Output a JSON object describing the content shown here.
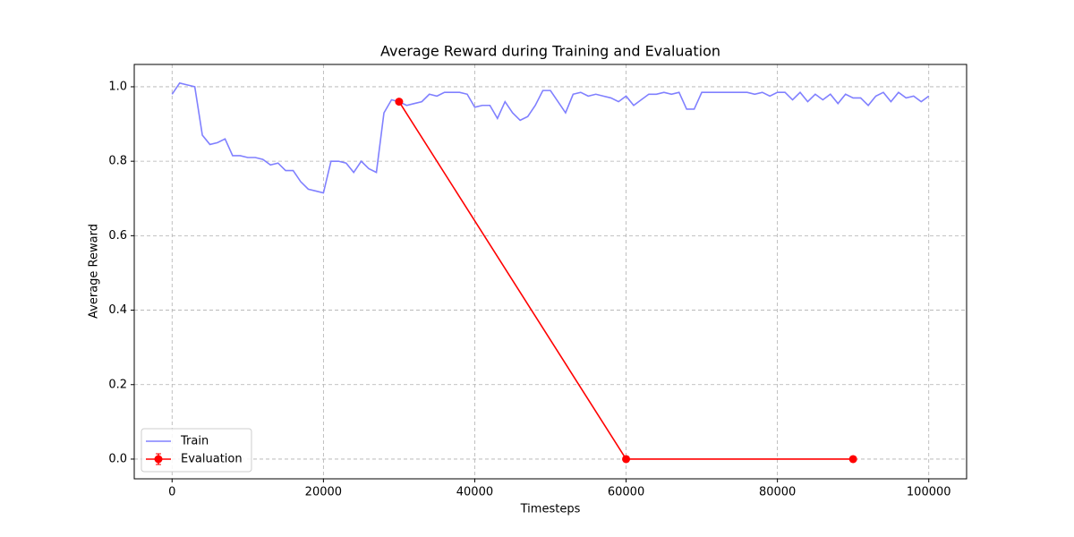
{
  "chart_data": {
    "type": "line",
    "title": "Average Reward during Training and Evaluation",
    "x_label": "Timesteps",
    "y_label": "Average Reward",
    "xlim": [
      -5000,
      105000
    ],
    "ylim": [
      -0.053,
      1.06
    ],
    "xticks": [
      0,
      20000,
      40000,
      60000,
      80000,
      100000
    ],
    "yticks": [
      {
        "value": 0,
        "label": "0.0"
      },
      0.2,
      0.4,
      0.6,
      0.8,
      {
        "value": 1,
        "label": "1.0"
      }
    ],
    "grid": true,
    "legend": "lower left",
    "series": [
      {
        "name": "Train",
        "color": "#8080ff",
        "markers": false,
        "x": [
          0,
          1000,
          2000,
          3000,
          4000,
          5000,
          6000,
          7000,
          8000,
          9000,
          10000,
          11000,
          12000,
          13000,
          14000,
          15000,
          16000,
          17000,
          18000,
          19000,
          20000,
          21000,
          22000,
          23000,
          24000,
          25000,
          26000,
          27000,
          28000,
          29000,
          30000,
          31000,
          32000,
          33000,
          34000,
          35000,
          36000,
          37000,
          38000,
          39000,
          40000,
          41000,
          42000,
          43000,
          44000,
          45000,
          46000,
          47000,
          48000,
          49000,
          50000,
          51000,
          52000,
          53000,
          54000,
          55000,
          56000,
          57000,
          58000,
          59000,
          60000,
          61000,
          62000,
          63000,
          64000,
          65000,
          66000,
          67000,
          68000,
          69000,
          70000,
          71000,
          72000,
          73000,
          74000,
          75000,
          76000,
          77000,
          78000,
          79000,
          80000,
          81000,
          82000,
          83000,
          84000,
          85000,
          86000,
          87000,
          88000,
          89000,
          90000,
          91000,
          92000,
          93000,
          94000,
          95000,
          96000,
          97000,
          98000,
          99000,
          100000
        ],
        "values": [
          0.98,
          1.01,
          1.005,
          1.0,
          0.87,
          0.845,
          0.85,
          0.86,
          0.815,
          0.815,
          0.81,
          0.81,
          0.805,
          0.79,
          0.795,
          0.775,
          0.775,
          0.745,
          0.725,
          0.72,
          0.715,
          0.8,
          0.8,
          0.795,
          0.77,
          0.8,
          0.78,
          0.77,
          0.93,
          0.965,
          0.96,
          0.95,
          0.955,
          0.96,
          0.98,
          0.975,
          0.985,
          0.985,
          0.985,
          0.98,
          0.945,
          0.95,
          0.95,
          0.915,
          0.96,
          0.93,
          0.91,
          0.92,
          0.95,
          0.99,
          0.99,
          0.96,
          0.93,
          0.98,
          0.985,
          0.975,
          0.98,
          0.975,
          0.97,
          0.96,
          0.975,
          0.95,
          0.965,
          0.98,
          0.98,
          0.985,
          0.98,
          0.985,
          0.94,
          0.94,
          0.985,
          0.985,
          0.985,
          0.985,
          0.985,
          0.985,
          0.985,
          0.98,
          0.985,
          0.975,
          0.985,
          0.985,
          0.965,
          0.985,
          0.96,
          0.98,
          0.965,
          0.98,
          0.955,
          0.98,
          0.97,
          0.97,
          0.95,
          0.975,
          0.985,
          0.96,
          0.985,
          0.97,
          0.975,
          0.96,
          0.975
        ]
      },
      {
        "name": "Evaluation",
        "color": "#ff0000",
        "markers": true,
        "x": [
          30000,
          60000,
          90000
        ],
        "values": [
          0.96,
          0,
          0
        ]
      }
    ]
  }
}
